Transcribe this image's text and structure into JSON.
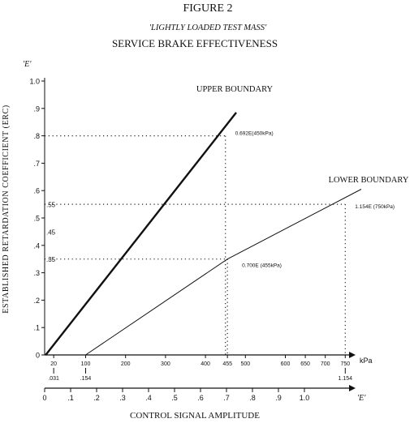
{
  "figure": {
    "label": "FIGURE 2",
    "subtitle": "'LIGHTLY LOADED TEST MASS'",
    "title": "SERVICE BRAKE EFFECTIVENESS"
  },
  "chart_data": {
    "type": "line",
    "title": "SERVICE BRAKE EFFECTIVENESS",
    "ylabel": "ESTABLISHED RETARDATION COEFFICIENT (ERC)",
    "y_symbol": "'E'",
    "xlabel": "CONTROL SIGNAL AMPLITUDE",
    "x_symbol": "'E'",
    "ylim": [
      0,
      1.0
    ],
    "xlim": [
      0,
      1.2
    ],
    "grid": false,
    "y_ticks": [
      {
        "value": 0,
        "label": "0"
      },
      {
        "value": 0.1,
        "label": ".1"
      },
      {
        "value": 0.2,
        "label": ".2"
      },
      {
        "value": 0.3,
        "label": ".3"
      },
      {
        "value": 0.4,
        "label": ".4"
      },
      {
        "value": 0.5,
        "label": ".5"
      },
      {
        "value": 0.6,
        "label": ".6"
      },
      {
        "value": 0.7,
        "label": ".7"
      },
      {
        "value": 0.8,
        "label": ".8"
      },
      {
        "value": 0.9,
        "label": ".9"
      },
      {
        "value": 1.0,
        "label": "1.0"
      }
    ],
    "y_extra_labels": [
      {
        "value": 0.55,
        "label": ".55"
      },
      {
        "value": 0.45,
        "label": ".45"
      },
      {
        "value": 0.35,
        "label": ".35"
      }
    ],
    "x_ticks": [
      {
        "value": 0,
        "label": "0"
      },
      {
        "value": 0.1,
        "label": ".1"
      },
      {
        "value": 0.2,
        "label": ".2"
      },
      {
        "value": 0.3,
        "label": ".3"
      },
      {
        "value": 0.4,
        "label": ".4"
      },
      {
        "value": 0.5,
        "label": ".5"
      },
      {
        "value": 0.6,
        "label": ".6"
      },
      {
        "value": 0.7,
        "label": ".7"
      },
      {
        "value": 0.8,
        "label": ".8"
      },
      {
        "value": 0.9,
        "label": ".9"
      },
      {
        "value": 1.0,
        "label": "1.0"
      }
    ],
    "pressure_axis": {
      "unit": "kPa",
      "ticks": [
        {
          "kpa": 20,
          "label": "20"
        },
        {
          "kpa": 100,
          "label": "100"
        },
        {
          "kpa": 200,
          "label": "200"
        },
        {
          "kpa": 300,
          "label": "300"
        },
        {
          "kpa": 400,
          "label": "400"
        },
        {
          "kpa": 455,
          "label": "455"
        },
        {
          "kpa": 500,
          "label": "500"
        },
        {
          "kpa": 600,
          "label": "600"
        },
        {
          "kpa": 650,
          "label": "650"
        },
        {
          "kpa": 700,
          "label": "700"
        },
        {
          "kpa": 750,
          "label": "750"
        }
      ],
      "sub_labels": [
        {
          "kpa": 20,
          "label": ".031"
        },
        {
          "kpa": 100,
          "label": ".154"
        },
        {
          "kpa": 750,
          "label": "1.154"
        }
      ]
    },
    "series": [
      {
        "name": "UPPER BOUNDARY",
        "points": [
          {
            "kpa": 0,
            "y": 0
          },
          {
            "kpa": 477,
            "y": 0.885
          }
        ],
        "annotation": {
          "kpa": 450,
          "y": 0.8,
          "label": "0.692E(450kPa)"
        }
      },
      {
        "name": "LOWER BOUNDARY",
        "points": [
          {
            "kpa": 100,
            "y": 0
          },
          {
            "kpa": 455,
            "y": 0.35
          },
          {
            "kpa": 790,
            "y": 0.605
          }
        ],
        "annotations": [
          {
            "kpa": 455,
            "y": 0.35,
            "label": "0.700E (455kPa)"
          },
          {
            "kpa": 750,
            "y": 0.55,
            "label": "1.154E (750kPa)"
          }
        ]
      }
    ],
    "reference_levels": [
      {
        "y": 0.8,
        "to_kpa": 450
      },
      {
        "y": 0.55,
        "to_kpa": 750
      },
      {
        "y": 0.35,
        "to_kpa": 455
      }
    ]
  }
}
